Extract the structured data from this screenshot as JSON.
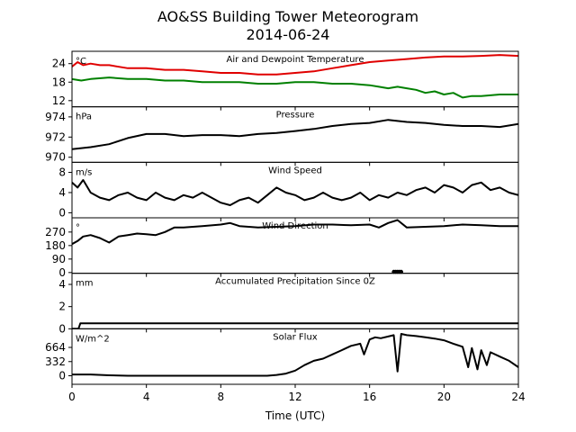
{
  "chart_data": {
    "type": "line",
    "title": "AO&SS Building Tower Meteorogram",
    "subtitle": "2014-06-24",
    "xlabel": "Time (UTC)",
    "xlim": [
      0,
      24
    ],
    "xticks": [
      "0",
      "4",
      "8",
      "12",
      "16",
      "20",
      "24"
    ],
    "panels": [
      {
        "id": "temp",
        "title": "Air and Dewpoint Temperature",
        "unit": "°C",
        "ylim": [
          10,
          28
        ],
        "yticks": [
          12,
          18,
          24
        ],
        "series": [
          {
            "color": "#e00000",
            "x": [
              0,
              0.3,
              0.6,
              1,
              1.5,
              2,
              3,
              4,
              5,
              6,
              7,
              8,
              9,
              10,
              11,
              12,
              13,
              14,
              15,
              16,
              17,
              18,
              19,
              20,
              21,
              22,
              23,
              24
            ],
            "y": [
              23,
              24.5,
              23.5,
              24,
              23.5,
              23.5,
              22.5,
              22.5,
              22,
              22,
              21.5,
              21,
              21,
              20.5,
              20.5,
              21,
              21.5,
              22.5,
              23.5,
              24.5,
              25,
              25.5,
              26,
              26.3,
              26.3,
              26.5,
              26.8,
              26.5
            ]
          },
          {
            "color": "#008000",
            "x": [
              0,
              0.5,
              1,
              2,
              3,
              4,
              5,
              6,
              7,
              8,
              9,
              10,
              11,
              12,
              13,
              14,
              15,
              16,
              16.5,
              17,
              17.5,
              18,
              18.5,
              19,
              19.5,
              20,
              20.5,
              21,
              21.5,
              22,
              23,
              24
            ],
            "y": [
              19,
              18.5,
              19,
              19.5,
              19,
              19,
              18.5,
              18.5,
              18,
              18,
              18,
              17.5,
              17.5,
              18,
              18,
              17.5,
              17.5,
              17,
              16.5,
              16,
              16.5,
              16,
              15.5,
              14.5,
              15,
              14,
              14.5,
              13,
              13.5,
              13.5,
              14,
              14
            ]
          }
        ]
      },
      {
        "id": "pres",
        "title": "Pressure",
        "unit": "hPa",
        "ylim": [
          969.5,
          975
        ],
        "yticks": [
          970,
          972,
          974
        ],
        "series": [
          {
            "color": "#000000",
            "x": [
              0,
              1,
              2,
              3,
              4,
              5,
              6,
              7,
              8,
              9,
              10,
              11,
              12,
              13,
              14,
              15,
              16,
              17,
              18,
              19,
              20,
              21,
              22,
              23,
              24
            ],
            "y": [
              970.8,
              971,
              971.3,
              971.9,
              972.3,
              972.3,
              972.1,
              972.2,
              972.2,
              972.1,
              972.3,
              972.4,
              972.6,
              972.8,
              973.1,
              973.3,
              973.4,
              973.7,
              973.5,
              973.4,
              973.2,
              973.1,
              973.1,
              973,
              973.3
            ]
          }
        ]
      },
      {
        "id": "wspd",
        "title": "Wind Speed",
        "unit": "m/s",
        "ylim": [
          -1,
          10
        ],
        "yticks": [
          0,
          4,
          8
        ],
        "series": [
          {
            "color": "#000000",
            "x": [
              0,
              0.3,
              0.6,
              1,
              1.5,
              2,
              2.5,
              3,
              3.5,
              4,
              4.5,
              5,
              5.5,
              6,
              6.5,
              7,
              7.5,
              8,
              8.5,
              9,
              9.5,
              10,
              10.5,
              11,
              11.5,
              12,
              12.5,
              13,
              13.5,
              14,
              14.5,
              15,
              15.5,
              16,
              16.5,
              17,
              17.5,
              18,
              18.5,
              19,
              19.5,
              20,
              20.5,
              21,
              21.5,
              22,
              22.5,
              23,
              23.5,
              24
            ],
            "y": [
              6,
              5,
              6.5,
              4,
              3,
              2.5,
              3.5,
              4,
              3,
              2.5,
              4,
              3,
              2.5,
              3.5,
              3,
              4,
              3,
              2,
              1.5,
              2.5,
              3,
              2,
              3.5,
              5,
              4,
              3.5,
              2.5,
              3,
              4,
              3,
              2.5,
              3,
              4,
              2.5,
              3.5,
              3,
              4,
              3.5,
              4.5,
              5,
              4,
              5.5,
              5,
              4,
              5.5,
              6,
              4.5,
              5,
              4,
              3.5
            ]
          }
        ]
      },
      {
        "id": "wdir",
        "title": "Wind Direction",
        "unit": "°",
        "ylim": [
          -5,
          365
        ],
        "yticks": [
          0,
          90,
          180,
          270
        ],
        "series": [
          {
            "color": "#000000",
            "x": [
              0,
              0.3,
              0.6,
              1,
              1.5,
              2,
              2.5,
              3,
              3.5,
              4,
              4.5,
              5,
              5.5,
              6,
              7,
              8,
              8.5,
              9,
              10,
              11,
              12,
              13,
              14,
              15,
              16,
              16.5,
              17,
              17.5,
              18,
              19,
              20,
              21,
              22,
              23,
              24
            ],
            "y": [
              190,
              210,
              240,
              250,
              230,
              200,
              240,
              250,
              260,
              255,
              250,
              270,
              300,
              300,
              310,
              320,
              330,
              310,
              300,
              305,
              310,
              320,
              320,
              315,
              320,
              300,
              330,
              350,
              300,
              305,
              310,
              320,
              315,
              310,
              310
            ]
          },
          {
            "color": "#000000",
            "marker": "dot",
            "x": [
              17.3,
              17.4,
              17.5,
              17.6,
              17.7
            ],
            "y": [
              5,
              5,
              5,
              5,
              5
            ]
          }
        ]
      },
      {
        "id": "precip",
        "title": "Accumulated Precipitation Since 0Z",
        "unit": "mm",
        "ylim": [
          0,
          5
        ],
        "yticks": [
          0,
          2,
          4
        ],
        "series": [
          {
            "color": "#000000",
            "x": [
              0,
              0.35,
              0.45,
              24
            ],
            "y": [
              0,
              0,
              0.5,
              0.5
            ]
          }
        ]
      },
      {
        "id": "solar",
        "title": "Solar Flux",
        "unit": "W/m^2",
        "ylim": [
          -200,
          1100
        ],
        "yticks": [
          0,
          332,
          664
        ],
        "series": [
          {
            "color": "#000000",
            "x": [
              0,
              1,
              2,
              3,
              4,
              5,
              6,
              7,
              8,
              9,
              10,
              10.5,
              11,
              11.5,
              12,
              12.5,
              13,
              13.5,
              14,
              14.5,
              15,
              15.5,
              15.7,
              16,
              16.3,
              16.6,
              17,
              17.3,
              17.5,
              17.7,
              18,
              18.5,
              19,
              19.5,
              20,
              20.5,
              21,
              21.3,
              21.5,
              21.8,
              22,
              22.3,
              22.5,
              23,
              23.5,
              24
            ],
            "y": [
              30,
              30,
              10,
              0,
              0,
              0,
              0,
              0,
              0,
              0,
              0,
              0,
              20,
              50,
              120,
              250,
              350,
              400,
              500,
              600,
              700,
              750,
              500,
              850,
              900,
              880,
              920,
              950,
              100,
              980,
              950,
              930,
              900,
              870,
              830,
              750,
              680,
              200,
              650,
              150,
              600,
              250,
              550,
              450,
              350,
              200
            ]
          }
        ]
      }
    ]
  }
}
